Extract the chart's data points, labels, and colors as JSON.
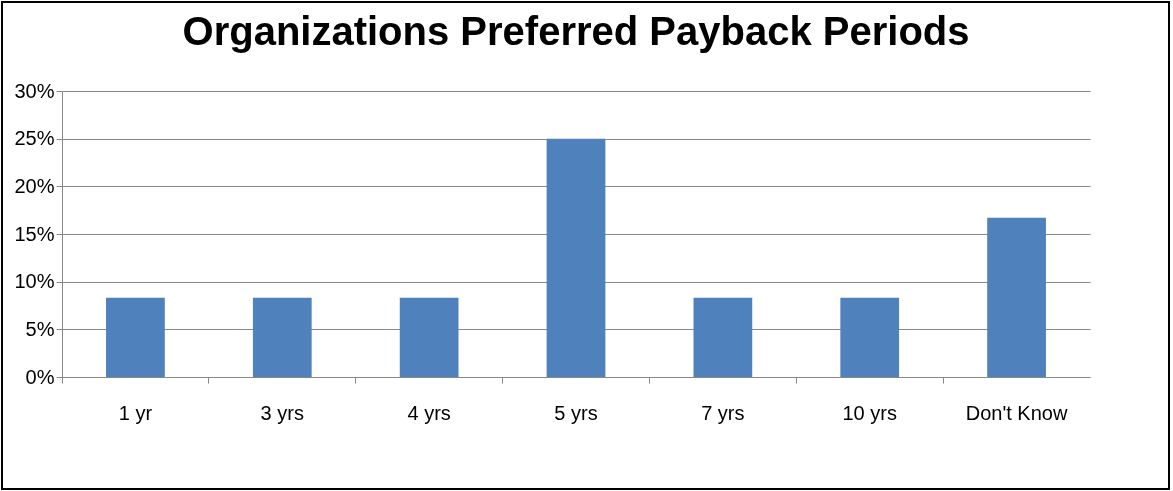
{
  "chart_data": {
    "type": "bar",
    "title": "Organizations Preferred Payback Periods",
    "categories": [
      "1 yr",
      "3 yrs",
      "4 yrs",
      "5 yrs",
      "7 yrs",
      "10 yrs",
      "Don't Know"
    ],
    "values": [
      8.3,
      8.3,
      8.3,
      25,
      8.3,
      8.3,
      16.7
    ],
    "color": "#4f81bd",
    "ylim": [
      0,
      30
    ],
    "yticks": [
      {
        "value": 0,
        "label": "0%"
      },
      {
        "value": 5,
        "label": "5%"
      },
      {
        "value": 10,
        "label": "10%"
      },
      {
        "value": 15,
        "label": "15%"
      },
      {
        "value": 20,
        "label": "20%"
      },
      {
        "value": 25,
        "label": "25%"
      },
      {
        "value": 30,
        "label": "30%"
      }
    ],
    "grid": "y"
  }
}
